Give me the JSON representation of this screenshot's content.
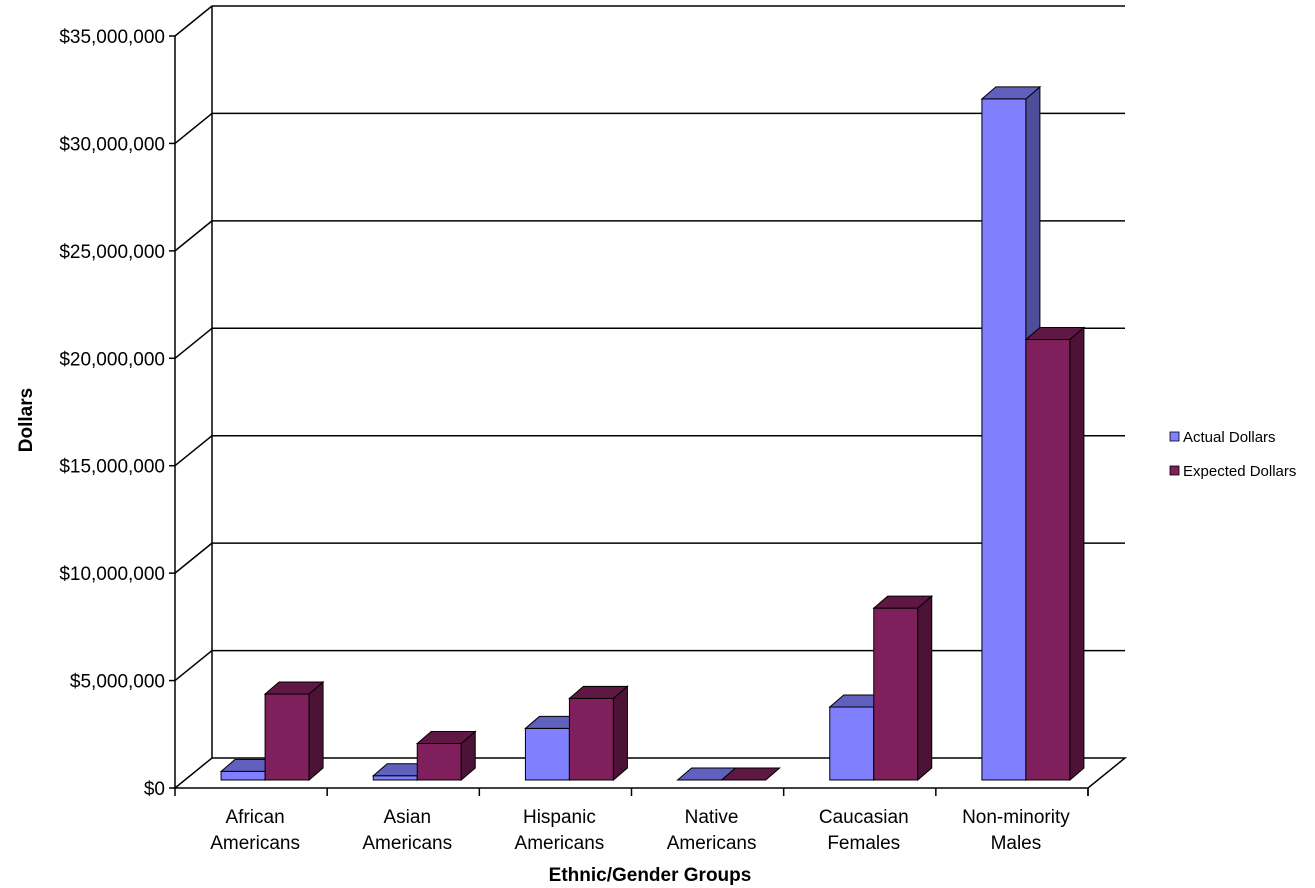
{
  "chart_data": {
    "type": "bar",
    "title": "",
    "xlabel": "Ethnic/Gender Groups",
    "ylabel": "Dollars",
    "ylim": [
      0,
      35000000
    ],
    "y_ticks": [
      "$0",
      "$5,000,000",
      "$10,000,000",
      "$15,000,000",
      "$20,000,000",
      "$25,000,000",
      "$30,000,000",
      "$35,000,000"
    ],
    "categories": [
      [
        "African",
        "Americans"
      ],
      [
        "Asian",
        "Americans"
      ],
      [
        "Hispanic",
        "Americans"
      ],
      [
        "Native",
        "Americans"
      ],
      [
        "Caucasian",
        "Females"
      ],
      [
        "Non-minority",
        "Males"
      ]
    ],
    "series": [
      {
        "name": "Actual Dollars",
        "color": "#8080ff",
        "values": [
          400000,
          200000,
          2400000,
          0,
          3400000,
          31700000
        ]
      },
      {
        "name": "Expected Dollars",
        "color": "#7f1f5b",
        "values": [
          4000000,
          1700000,
          3800000,
          0,
          8000000,
          20500000
        ]
      }
    ],
    "legend_position": "right",
    "grid": true,
    "three_d": true
  }
}
